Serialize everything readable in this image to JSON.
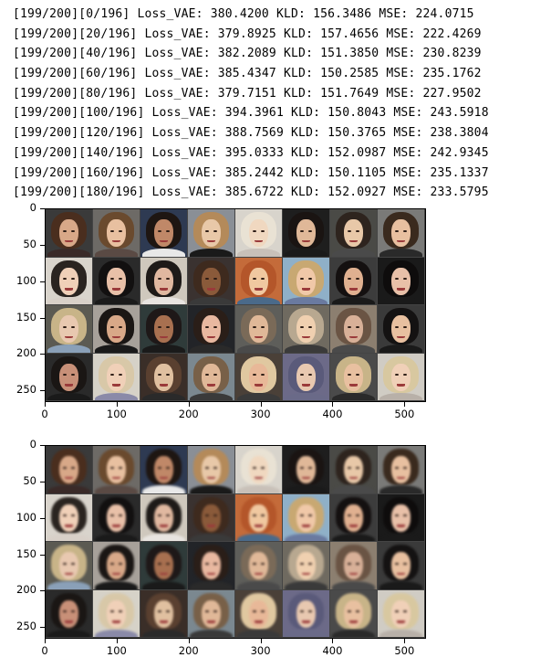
{
  "training_log": [
    "[199/200][0/196] Loss_VAE: 380.4200 KLD: 156.3486 MSE: 224.0715",
    "[199/200][20/196] Loss_VAE: 379.8925 KLD: 157.4656 MSE: 222.4269",
    "[199/200][40/196] Loss_VAE: 382.2089 KLD: 151.3850 MSE: 230.8239",
    "[199/200][60/196] Loss_VAE: 385.4347 KLD: 150.2585 MSE: 235.1762",
    "[199/200][80/196] Loss_VAE: 379.7151 KLD: 151.7649 MSE: 227.9502",
    "[199/200][100/196] Loss_VAE: 394.3961 KLD: 150.8043 MSE: 243.5918",
    "[199/200][120/196] Loss_VAE: 388.7569 KLD: 150.3765 MSE: 238.3804",
    "[199/200][140/196] Loss_VAE: 395.0333 KLD: 152.0987 MSE: 242.9345",
    "[199/200][160/196] Loss_VAE: 385.2442 KLD: 150.1105 MSE: 235.1337",
    "[199/200][180/196] Loss_VAE: 385.6722 KLD: 152.0927 MSE: 233.5795"
  ],
  "plots": [
    {
      "y_ticks": [
        "0",
        "50",
        "100",
        "150",
        "200",
        "250"
      ],
      "x_ticks": [
        "0",
        "100",
        "200",
        "300",
        "400",
        "500"
      ],
      "x_range": [
        0,
        530
      ],
      "y_range": [
        0,
        266
      ]
    },
    {
      "y_ticks": [
        "0",
        "50",
        "100",
        "150",
        "200",
        "250"
      ],
      "x_ticks": [
        "0",
        "100",
        "200",
        "300",
        "400",
        "500"
      ],
      "x_range": [
        0,
        530
      ],
      "y_range": [
        0,
        266
      ]
    }
  ],
  "image_grid": {
    "rows": 4,
    "cols": 8
  },
  "palettes": {
    "bg": [
      "#3a3a3a",
      "#6d6a66",
      "#2e3a52",
      "#8a8f96",
      "#d8d4cc",
      "#1e1e1e",
      "#4a4a46",
      "#7a7a78",
      "#d9d4cc",
      "#2a2a2a",
      "#cfc8bd",
      "#3a3230",
      "#c46b3a",
      "#8fb0c8",
      "#3c3c3c",
      "#1a1a1a",
      "#5b5a52",
      "#a7a19a",
      "#2f3b3a",
      "#222428",
      "#5e5e5a",
      "#6f6a60",
      "#8c7f70",
      "#3a3a3a",
      "#2a2a2a",
      "#d6d2c8",
      "#3a2e28",
      "#7b8890",
      "#4a4038",
      "#6c6a88",
      "#4a4a4a",
      "#d0ccc4"
    ],
    "hair": [
      "#4a2e1e",
      "#6a4a2e",
      "#1e1612",
      "#b48a5a",
      "#e9e2d4",
      "#1a1412",
      "#2e241e",
      "#3a2a1e",
      "#2a2420",
      "#121010",
      "#1e1a18",
      "#3e2a1e",
      "#b4562a",
      "#c8a872",
      "#141010",
      "#0e0c0c",
      "#c8b488",
      "#1a1614",
      "#1e1818",
      "#2a1e18",
      "#7a6a58",
      "#b8a890",
      "#6a5444",
      "#141212",
      "#1a1614",
      "#d8c8a8",
      "#5a4030",
      "#786048",
      "#e0c8a0",
      "#5a5a7a",
      "#c8b488",
      "#d8c8a0"
    ],
    "skin": [
      "#d8a888",
      "#e8c0a0",
      "#c08868",
      "#e8c8a8",
      "#f0d8c0",
      "#e0b898",
      "#e8c8a8",
      "#e8c0a0",
      "#f0d0b8",
      "#e8c0a8",
      "#e0b8a0",
      "#8a5a3a",
      "#f0c8a0",
      "#f0c8a8",
      "#e0b090",
      "#e8c0a8",
      "#e8c8b0",
      "#d8a888",
      "#a87050",
      "#e8b8a0",
      "#e0b898",
      "#f0d0b0",
      "#d8b098",
      "#e8c0a0",
      "#c89078",
      "#f0d0b8",
      "#e0c0a0",
      "#e0b898",
      "#e8b898",
      "#e8c8b0",
      "#e8c0a0",
      "#f0d0b8"
    ],
    "shoulder": [
      "#3a2a28",
      "#5a4a44",
      "#e8e8e8",
      "#1a1a1a",
      "#c8c0b8",
      "#1a1a1a",
      "#4a4a4a",
      "#2a2a2a",
      "#d8d0c8",
      "#1a1a1a",
      "#e8e4e0",
      "#3a3a3a",
      "#4a6a8a",
      "#6a7aa0",
      "#1a1a1a",
      "#1a1a1a",
      "#8aa0b8",
      "#1a1a1a",
      "#1a1a1a",
      "#2a2a2a",
      "#4a4a4a",
      "#3a3a3a",
      "#4a4a4a",
      "#1a1a1a",
      "#1a1a1a",
      "#8a8aa8",
      "#2a2a2a",
      "#3a3a3a",
      "#3a3a3a",
      "#6a6a88",
      "#2a2a2a",
      "#b8b0a8"
    ]
  }
}
